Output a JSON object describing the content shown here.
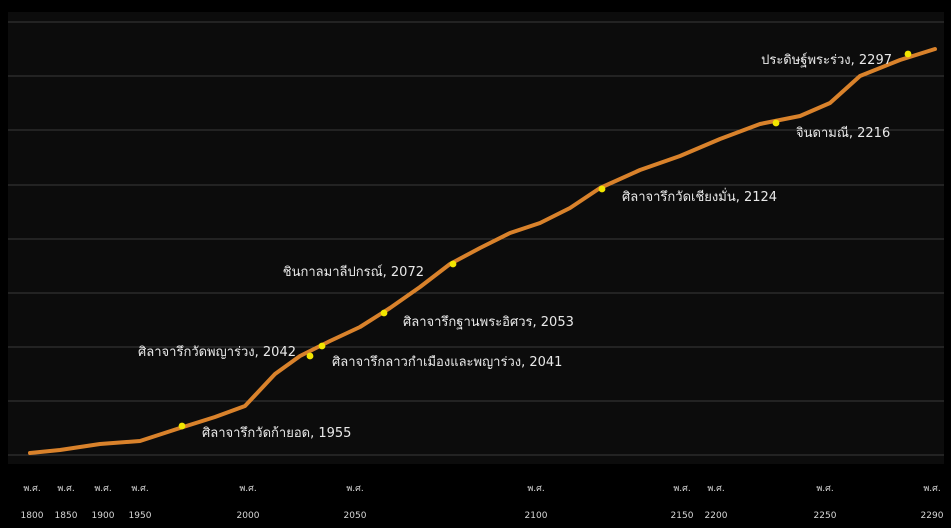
{
  "chart_data": {
    "type": "line",
    "title": "",
    "xlabel": "",
    "ylabel": "",
    "grid": true,
    "line_color": "#d9822b",
    "marker_color": "#f2e600",
    "background": "#0c0c0c",
    "grid_color": "#3a3a3a",
    "tick_prefix": "พ.ศ.",
    "x_ticks": [
      "1800",
      "1850",
      "1900",
      "1950",
      "2000",
      "2050",
      "2100",
      "2150",
      "2200",
      "2250",
      "2290"
    ],
    "series": [
      {
        "values": [
          0.3,
          0.6,
          1.2,
          1.4,
          2.2,
          2.8,
          3.5,
          4.3,
          4.7,
          5.2,
          5.6,
          6.1,
          6.6,
          7.0,
          7.4,
          7.9,
          8.4,
          8.8,
          9.2,
          9.6,
          9.9,
          10.4,
          11.0,
          11.5
        ]
      }
    ],
    "annotations": [
      {
        "text": "ศิลาจารึกวัดก้ายอด, 1955",
        "pos": "right"
      },
      {
        "text": "ศิลาจารึกวัดพญาร่วง, 2042",
        "pos": "left"
      },
      {
        "text": "ศิลาจารึกลาวกำเมืองและพญาร่วง, 2041",
        "pos": "right"
      },
      {
        "text": "ศิลาจารึกฐานพระอิศวร, 2053",
        "pos": "right"
      },
      {
        "text": "ชินกาลมาลีปกรณ์, 2072",
        "pos": "left"
      },
      {
        "text": "ศิลาจารึกวัดเชียงมั่น, 2124",
        "pos": "right"
      },
      {
        "text": "จินดามณี, 2216",
        "pos": "right"
      },
      {
        "text": "ประดิษฐ์พระร่วง, 2297",
        "pos": "left"
      }
    ]
  }
}
